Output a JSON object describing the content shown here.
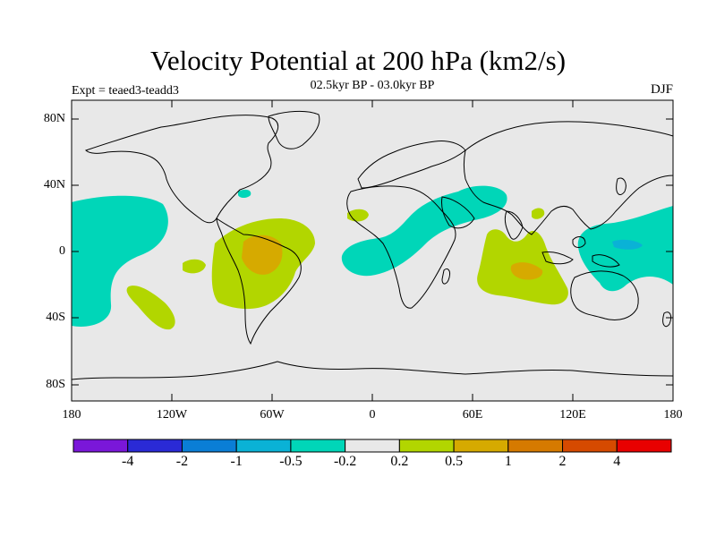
{
  "title": "Velocity Potential at 200 hPa (km2/s)",
  "subtitle": "02.5kyr BP - 03.0kyr BP",
  "experiment": "Expt = teaed3-teadd3",
  "season": "DJF",
  "map": {
    "lat_labels": [
      "80N",
      "40N",
      "0",
      "40S",
      "80S"
    ],
    "lon_labels": [
      "180",
      "120W",
      "60W",
      "0",
      "60E",
      "120E",
      "180"
    ],
    "background_color": "#e8e8e8"
  },
  "colorbar": {
    "colors": [
      "#7a17d9",
      "#2a2ad6",
      "#0a7ed6",
      "#0ab2d6",
      "#00d6b8",
      "#e8e8e8",
      "#b2d600",
      "#d6aa00",
      "#d67a00",
      "#d64a00",
      "#e80000"
    ],
    "labels": [
      "-4",
      "-2",
      "-1",
      "-0.5",
      "-0.2",
      "0.2",
      "0.5",
      "1",
      "2",
      "4"
    ]
  },
  "anomaly_fills": {
    "negative_weak": "#00d6b8",
    "negative_moderate": "#0ab2d6",
    "positive_weak": "#b2d600",
    "positive_moderate": "#d6aa00"
  }
}
